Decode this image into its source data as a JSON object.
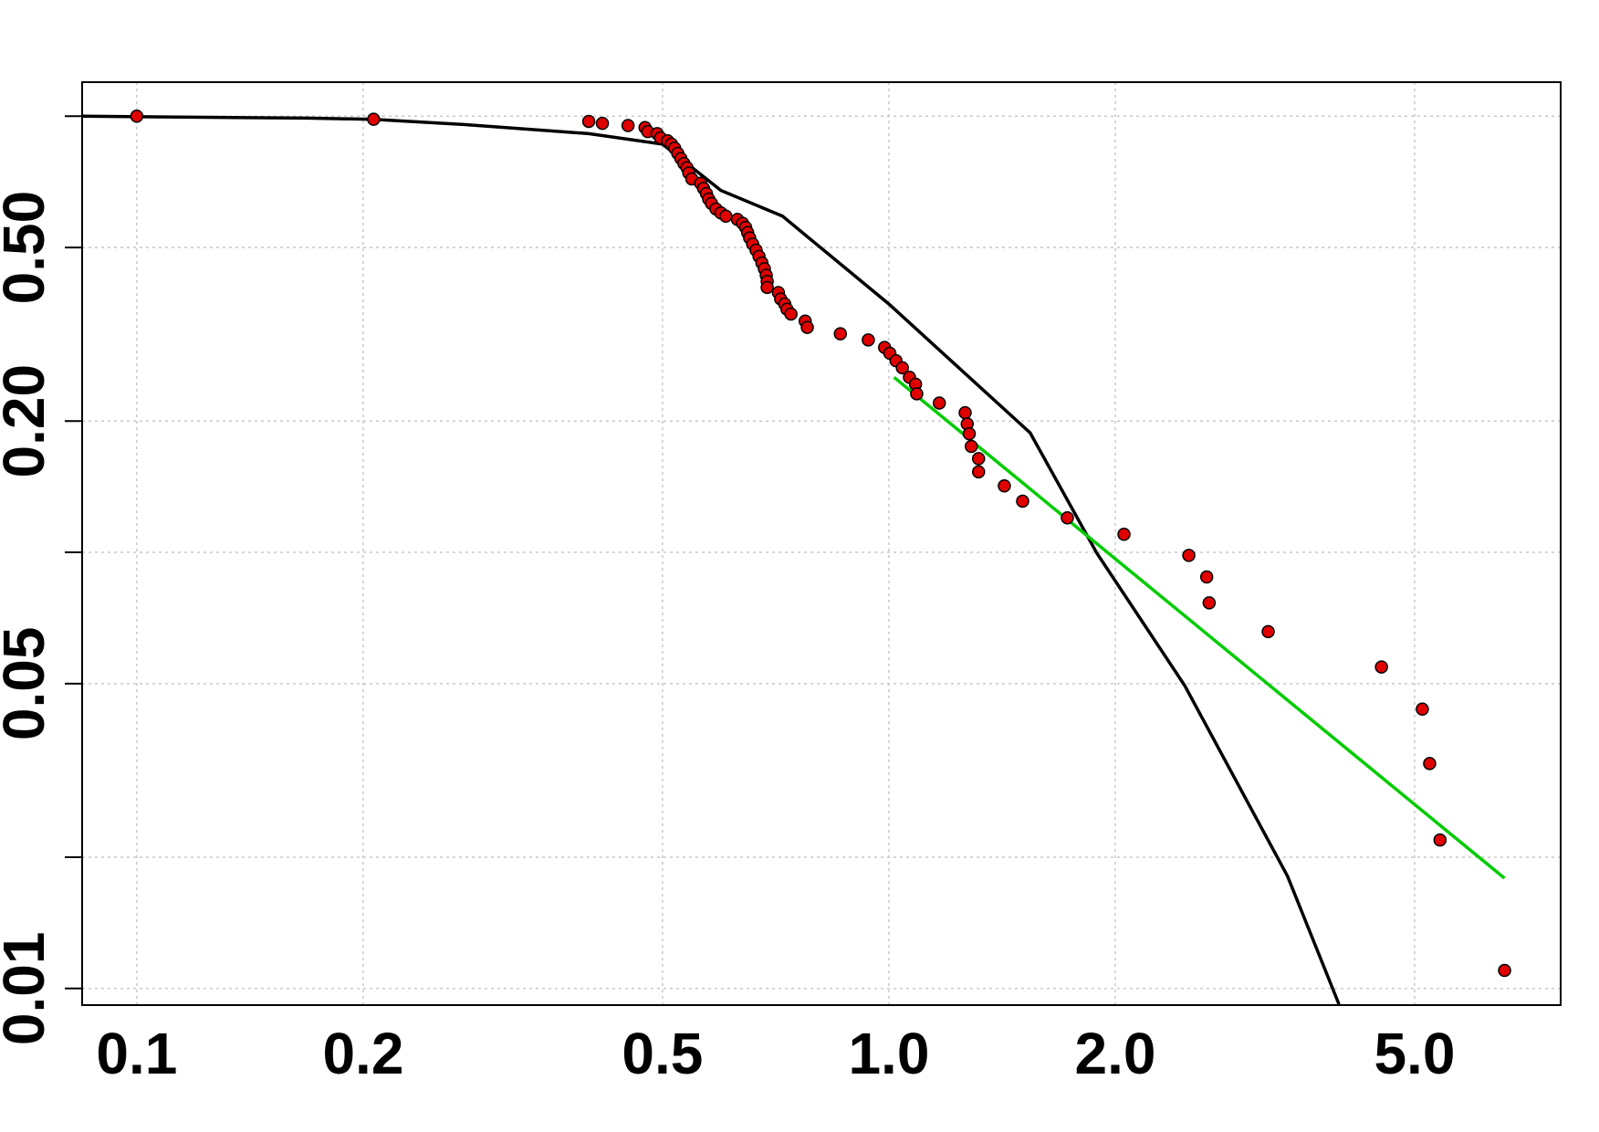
{
  "chart_data": {
    "type": "scatter",
    "xlog": true,
    "ylog": true,
    "grid": true,
    "xlim": [
      0.0846,
      7.82
    ],
    "ylim": [
      0.00916,
      1.197
    ],
    "xticks": [
      0.1,
      0.2,
      0.5,
      {
        "value": 1,
        "label": "1.0"
      },
      {
        "value": 2,
        "label": "2.0"
      },
      {
        "value": 5,
        "label": "5.0"
      }
    ],
    "yticks": [
      0.01,
      {
        "value": 0.02,
        "label": null
      },
      0.05,
      {
        "value": 0.1,
        "label": null
      },
      {
        "value": 0.2,
        "label": "0.20"
      },
      {
        "value": 0.5,
        "label": "0.50"
      },
      {
        "value": 1,
        "label": null
      }
    ],
    "series": [
      {
        "type": "scatter",
        "color": "#e00000",
        "x": [
          0.1,
          0.2065,
          0.399,
          0.416,
          0.45,
          0.474,
          0.478,
          0.492,
          0.497,
          0.508,
          0.514,
          0.519,
          0.524,
          0.529,
          0.534,
          0.539,
          0.542,
          0.547,
          0.562,
          0.567,
          0.572,
          0.576,
          0.581,
          0.589,
          0.598,
          0.607,
          0.629,
          0.639,
          0.645,
          0.649,
          0.653,
          0.659,
          0.666,
          0.672,
          0.678,
          0.683,
          0.687,
          0.689,
          0.689,
          0.713,
          0.718,
          0.727,
          0.732,
          0.741,
          0.774,
          0.779,
          0.862,
          0.939,
          0.987,
          1.003,
          1.022,
          1.042,
          1.065,
          1.085,
          1.089,
          1.167,
          1.263,
          1.271,
          1.279,
          1.287,
          1.316,
          1.316,
          1.424,
          1.506,
          1.727,
          2.054,
          2.505,
          2.646,
          2.666,
          3.194,
          4.518,
          5.12,
          5.236,
          5.405,
          6.586
        ],
        "values": [
          1.0,
          0.984,
          0.973,
          0.963,
          0.952,
          0.942,
          0.922,
          0.912,
          0.892,
          0.878,
          0.863,
          0.845,
          0.822,
          0.8,
          0.779,
          0.762,
          0.741,
          0.718,
          0.702,
          0.683,
          0.665,
          0.646,
          0.631,
          0.613,
          0.6,
          0.59,
          0.58,
          0.568,
          0.556,
          0.541,
          0.526,
          0.509,
          0.493,
          0.477,
          0.461,
          0.447,
          0.432,
          0.418,
          0.405,
          0.394,
          0.381,
          0.371,
          0.361,
          0.352,
          0.339,
          0.328,
          0.317,
          0.307,
          0.295,
          0.286,
          0.275,
          0.265,
          0.252,
          0.243,
          0.231,
          0.22,
          0.209,
          0.197,
          0.187,
          0.175,
          0.164,
          0.153,
          0.142,
          0.131,
          0.12,
          0.11,
          0.0984,
          0.0878,
          0.0766,
          0.0658,
          0.0546,
          0.0437,
          0.0328,
          0.0219,
          0.011
        ]
      },
      {
        "type": "line",
        "color": "#000000",
        "x": [
          0.0846,
          0.169,
          0.2065,
          0.272,
          0.399,
          0.5,
          0.598,
          0.722,
          1.0,
          1.541,
          1.891,
          2.474,
          3.389,
          3.967
        ],
        "values": [
          1.0,
          0.99,
          0.984,
          0.957,
          0.912,
          0.863,
          0.676,
          0.59,
          0.371,
          0.188,
          0.0995,
          0.0495,
          0.0181,
          0.0092
        ]
      },
      {
        "type": "line",
        "color": "#00cc00",
        "x": [
          1.016,
          6.586
        ],
        "values": [
          0.252,
          0.0179
        ]
      }
    ]
  }
}
